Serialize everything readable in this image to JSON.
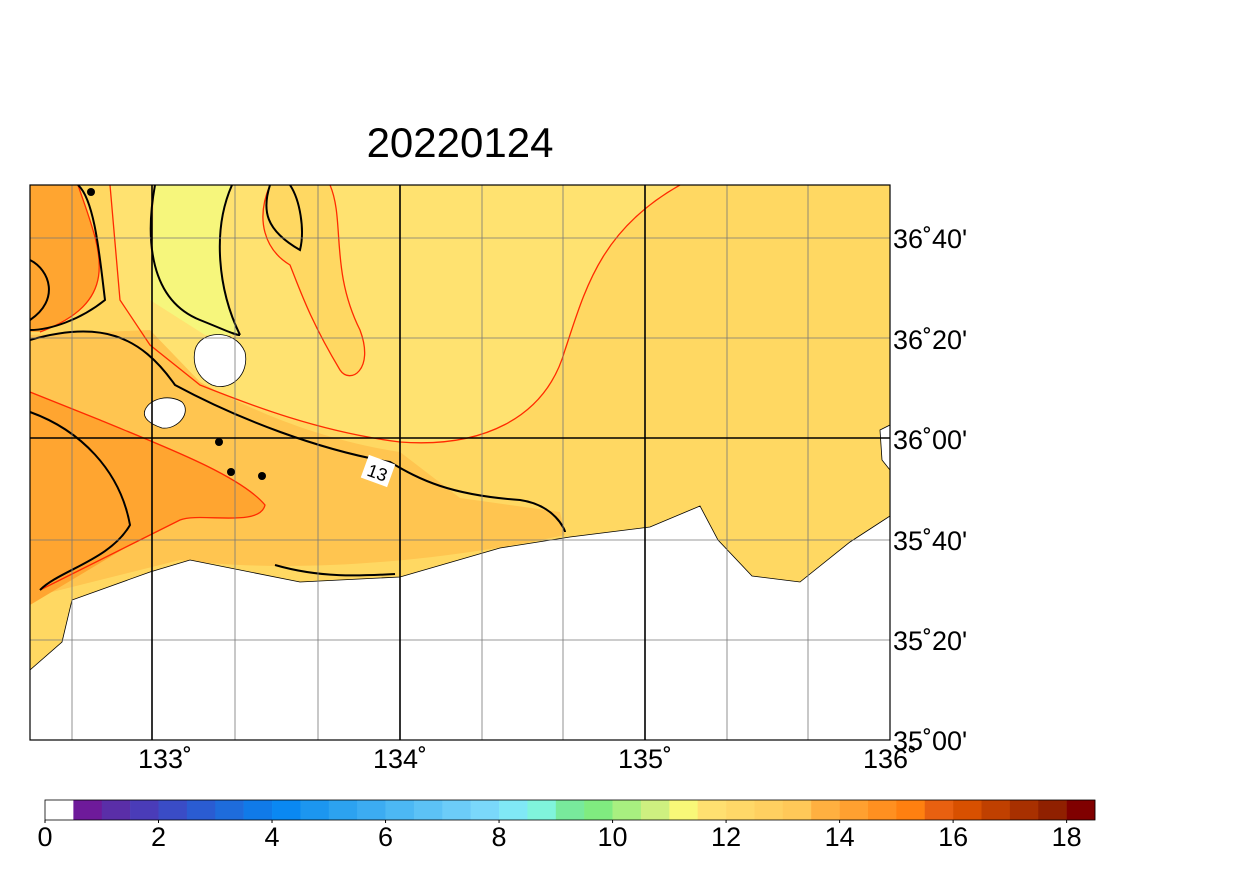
{
  "title": "20220124",
  "lon_labels": [
    "133˚",
    "134˚",
    "135˚",
    "136˚"
  ],
  "lat_labels": [
    "36˚40'",
    "36˚20'",
    "36˚00'",
    "35˚40'",
    "35˚20'",
    "35˚00'"
  ],
  "contour_labels": [
    "13"
  ],
  "colorbar": {
    "ticks": [
      0,
      2,
      4,
      6,
      8,
      10,
      12,
      14,
      16,
      18
    ],
    "colors": [
      "#ffffff",
      "#6e1a9a",
      "#5a2ea8",
      "#4a3cb8",
      "#3a4cc6",
      "#2a5cd2",
      "#1e6cdc",
      "#107ae8",
      "#0a88f2",
      "#1c96f0",
      "#2ca2f0",
      "#3cacf2",
      "#4cb8f4",
      "#5cc2f6",
      "#6cccf8",
      "#7ad8fa",
      "#80e8f6",
      "#80f4dc",
      "#78ea9c",
      "#80ec80",
      "#a8f080",
      "#cef080",
      "#f8f878",
      "#ffe070",
      "#ffd868",
      "#ffd060",
      "#ffc858",
      "#ffb040",
      "#ffa030",
      "#ff9020",
      "#ff8010",
      "#e86010",
      "#d85000",
      "#c04000",
      "#a83000",
      "#902000",
      "#800000"
    ]
  }
}
